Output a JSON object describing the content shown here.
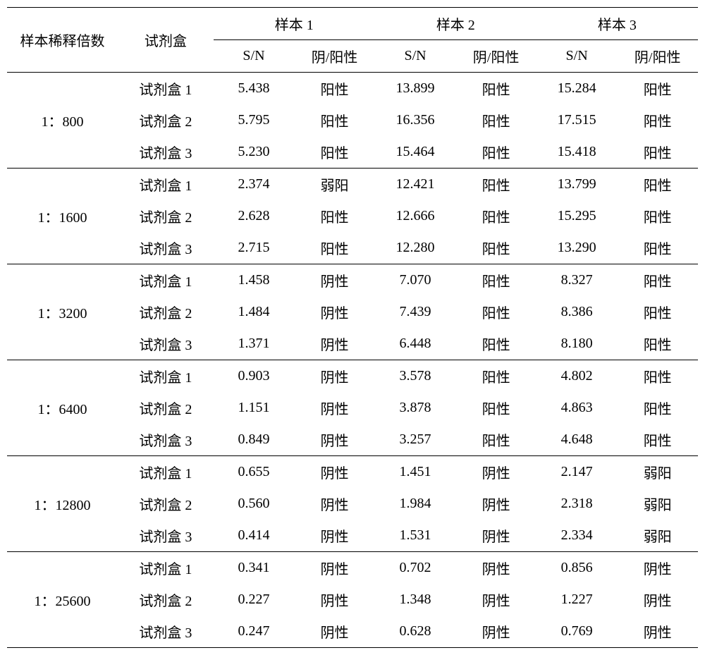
{
  "table": {
    "type": "table",
    "background_color": "#ffffff",
    "text_color": "#000000",
    "border_color": "#000000",
    "fontsize": 20,
    "headers": {
      "dilution": "样本稀释倍数",
      "kit": "试剂盒",
      "sample1": "样本 1",
      "sample2": "样本 2",
      "sample3": "样本 3",
      "sn": "S/N",
      "result": "阴/阳性"
    },
    "groups": [
      {
        "dilution": "1：800",
        "rows": [
          {
            "kit": "试剂盒 1",
            "s1": "5.438",
            "r1": "阳性",
            "s2": "13.899",
            "r2": "阳性",
            "s3": "15.284",
            "r3": "阳性"
          },
          {
            "kit": "试剂盒 2",
            "s1": "5.795",
            "r1": "阳性",
            "s2": "16.356",
            "r2": "阳性",
            "s3": "17.515",
            "r3": "阳性"
          },
          {
            "kit": "试剂盒 3",
            "s1": "5.230",
            "r1": "阳性",
            "s2": "15.464",
            "r2": "阳性",
            "s3": "15.418",
            "r3": "阳性"
          }
        ]
      },
      {
        "dilution": "1：1600",
        "rows": [
          {
            "kit": "试剂盒 1",
            "s1": "2.374",
            "r1": "弱阳",
            "s2": "12.421",
            "r2": "阳性",
            "s3": "13.799",
            "r3": "阳性"
          },
          {
            "kit": "试剂盒 2",
            "s1": "2.628",
            "r1": "阳性",
            "s2": "12.666",
            "r2": "阳性",
            "s3": "15.295",
            "r3": "阳性"
          },
          {
            "kit": "试剂盒 3",
            "s1": "2.715",
            "r1": "阳性",
            "s2": "12.280",
            "r2": "阳性",
            "s3": "13.290",
            "r3": "阳性"
          }
        ]
      },
      {
        "dilution": "1：3200",
        "rows": [
          {
            "kit": "试剂盒 1",
            "s1": "1.458",
            "r1": "阴性",
            "s2": "7.070",
            "r2": "阳性",
            "s3": "8.327",
            "r3": "阳性"
          },
          {
            "kit": "试剂盒 2",
            "s1": "1.484",
            "r1": "阴性",
            "s2": "7.439",
            "r2": "阳性",
            "s3": "8.386",
            "r3": "阳性"
          },
          {
            "kit": "试剂盒 3",
            "s1": "1.371",
            "r1": "阴性",
            "s2": "6.448",
            "r2": "阳性",
            "s3": "8.180",
            "r3": "阳性"
          }
        ]
      },
      {
        "dilution": "1：6400",
        "rows": [
          {
            "kit": "试剂盒 1",
            "s1": "0.903",
            "r1": "阴性",
            "s2": "3.578",
            "r2": "阳性",
            "s3": "4.802",
            "r3": "阳性"
          },
          {
            "kit": "试剂盒 2",
            "s1": "1.151",
            "r1": "阴性",
            "s2": "3.878",
            "r2": "阳性",
            "s3": "4.863",
            "r3": "阳性"
          },
          {
            "kit": "试剂盒 3",
            "s1": "0.849",
            "r1": "阴性",
            "s2": "3.257",
            "r2": "阳性",
            "s3": "4.648",
            "r3": "阳性"
          }
        ]
      },
      {
        "dilution": "1：12800",
        "rows": [
          {
            "kit": "试剂盒 1",
            "s1": "0.655",
            "r1": "阴性",
            "s2": "1.451",
            "r2": "阴性",
            "s3": "2.147",
            "r3": "弱阳"
          },
          {
            "kit": "试剂盒 2",
            "s1": "0.560",
            "r1": "阴性",
            "s2": "1.984",
            "r2": "阴性",
            "s3": "2.318",
            "r3": "弱阳"
          },
          {
            "kit": "试剂盒 3",
            "s1": "0.414",
            "r1": "阴性",
            "s2": "1.531",
            "r2": "阴性",
            "s3": "2.334",
            "r3": "弱阳"
          }
        ]
      },
      {
        "dilution": "1：25600",
        "rows": [
          {
            "kit": "试剂盒 1",
            "s1": "0.341",
            "r1": "阴性",
            "s2": "0.702",
            "r2": "阴性",
            "s3": "0.856",
            "r3": "阴性"
          },
          {
            "kit": "试剂盒 2",
            "s1": "0.227",
            "r1": "阴性",
            "s2": "1.348",
            "r2": "阴性",
            "s3": "1.227",
            "r3": "阴性"
          },
          {
            "kit": "试剂盒 3",
            "s1": "0.247",
            "r1": "阴性",
            "s2": "0.628",
            "r2": "阴性",
            "s3": "0.769",
            "r3": "阴性"
          }
        ]
      }
    ]
  }
}
